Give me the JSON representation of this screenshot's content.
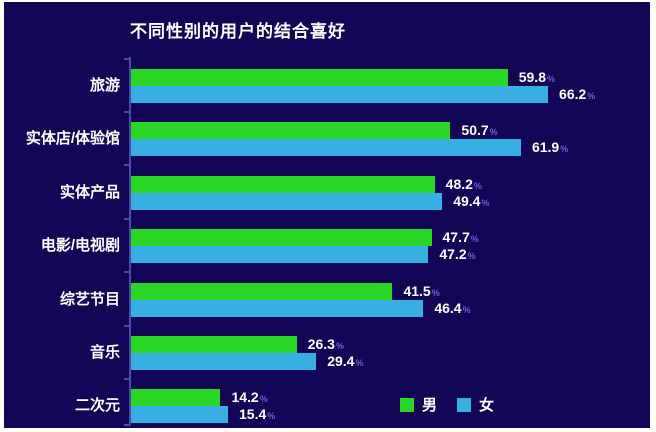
{
  "chart_data": {
    "type": "bar",
    "orientation": "horizontal",
    "title": "不同性别的用户的结合喜好",
    "categories": [
      "旅游",
      "实体店/体验馆",
      "实体产品",
      "电影/电视剧",
      "综艺节目",
      "音乐",
      "二次元"
    ],
    "series": [
      {
        "name": "男",
        "color": "#28d626",
        "values": [
          59.8,
          50.7,
          48.2,
          47.7,
          41.5,
          26.3,
          14.2
        ]
      },
      {
        "name": "女",
        "color": "#38afe3",
        "values": [
          66.2,
          61.9,
          49.4,
          47.2,
          46.4,
          29.4,
          15.4
        ]
      }
    ],
    "value_suffix": "%",
    "xlim": [
      0,
      70
    ],
    "grid": false,
    "legend_position": "bottom-right",
    "colors": {
      "background": "#110556",
      "frame": "#ffffff",
      "axis": "#4b4aa6",
      "title_text": "#ffffff",
      "category_text": "#ffffff",
      "value_text": "#ffffff",
      "percent_sign": "#6f5fd6"
    }
  }
}
